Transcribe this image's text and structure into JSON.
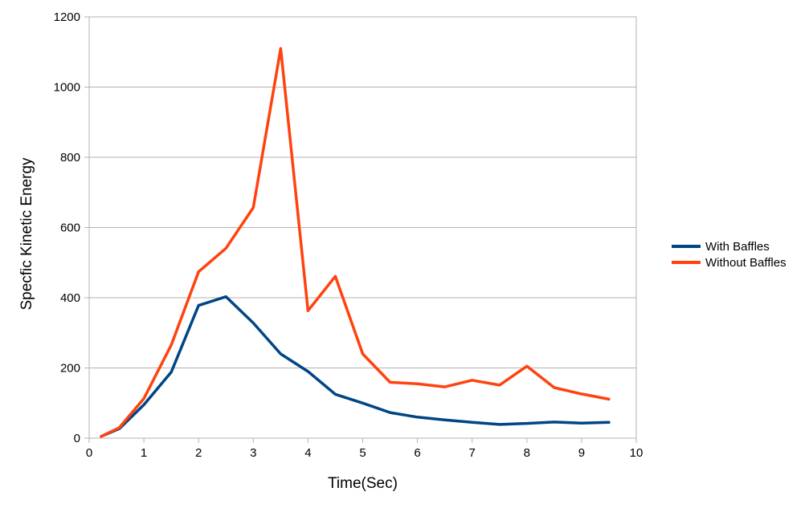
{
  "chart_data": {
    "type": "line",
    "xlabel": "Time(Sec)",
    "ylabel": "Specfic Kinetic Energy",
    "xlim": [
      0,
      10
    ],
    "ylim": [
      0,
      1200
    ],
    "xticks": [
      0,
      1,
      2,
      3,
      4,
      5,
      6,
      7,
      8,
      9,
      10
    ],
    "yticks": [
      0,
      200,
      400,
      600,
      800,
      1000,
      1200
    ],
    "grid": "horizontal",
    "legend_position": "right",
    "series": [
      {
        "name": "With Baffles",
        "color": "#004586",
        "x": [
          0.22,
          0.55,
          1,
          1.5,
          2,
          2.5,
          3,
          3.5,
          4,
          4.5,
          5,
          5.5,
          6,
          6.5,
          7,
          7.5,
          8,
          8.5,
          9,
          9.5
        ],
        "y": [
          5,
          27,
          95,
          188,
          378,
          403,
          328,
          240,
          190,
          125,
          100,
          73,
          60,
          52,
          45,
          39,
          42,
          46,
          43,
          45
        ]
      },
      {
        "name": "Without Baffles",
        "color": "#ff420e",
        "x": [
          0.22,
          0.55,
          1,
          1.5,
          2,
          2.5,
          3,
          3.5,
          4,
          4.5,
          5,
          5.5,
          6,
          6.5,
          7,
          7.5,
          8,
          8.5,
          9,
          9.5
        ],
        "y": [
          5,
          30,
          113,
          265,
          474,
          541,
          657,
          1110,
          363,
          461,
          240,
          159,
          155,
          146,
          165,
          151,
          205,
          144,
          126,
          111
        ]
      }
    ]
  }
}
